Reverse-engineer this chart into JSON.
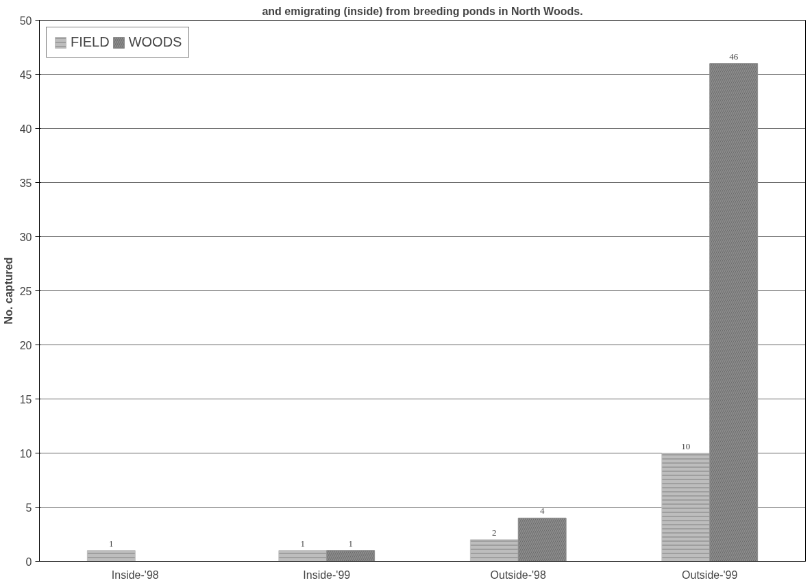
{
  "chart_data": {
    "type": "bar",
    "title": "and emigrating (inside) from breeding ponds in North Woods.",
    "ylabel": "No. captured",
    "categories": [
      "Inside-'98",
      "Inside-'99",
      "Outside-'98",
      "Outside-'99"
    ],
    "series": [
      {
        "name": "FIELD",
        "color": "#bdbdbd",
        "values": [
          1,
          1,
          2,
          10
        ]
      },
      {
        "name": "WOODS",
        "color": "#8c8c8c",
        "values": [
          null,
          1,
          4,
          46
        ]
      }
    ],
    "ylim": [
      0,
      50
    ],
    "yticks": [
      0,
      5,
      10,
      15,
      20,
      25,
      30,
      35,
      40,
      45,
      50
    ],
    "grid": "y",
    "legend": "top left",
    "data_labels": true
  }
}
